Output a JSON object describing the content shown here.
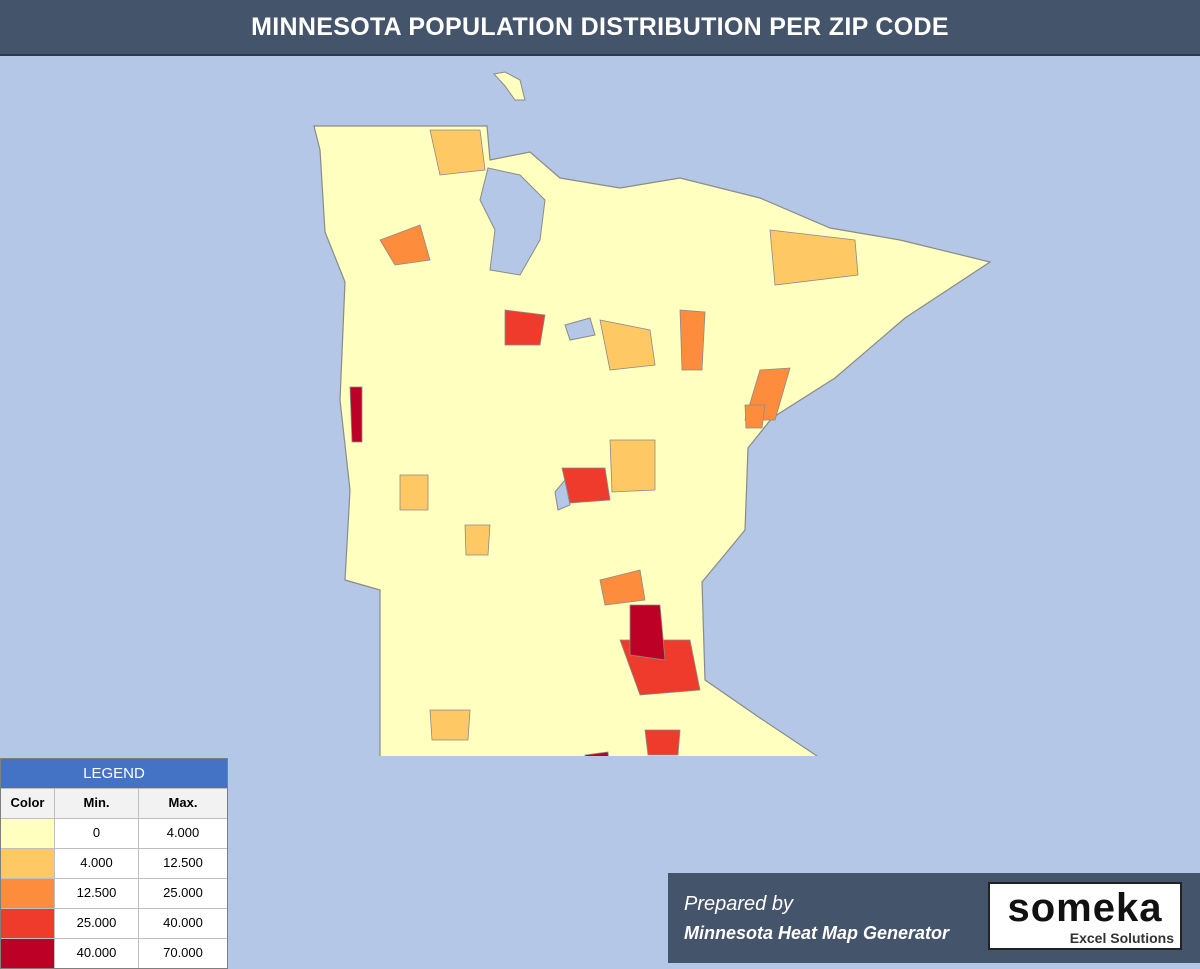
{
  "title": "MINNESOTA POPULATION DISTRIBUTION PER ZIP CODE",
  "legend": {
    "title": "LEGEND",
    "columns": [
      "Color",
      "Min.",
      "Max."
    ],
    "rows": [
      {
        "min": "0",
        "max": "4.000",
        "color": "#ffffbf"
      },
      {
        "min": "4.000",
        "max": "12.500",
        "color": "#fec965"
      },
      {
        "min": "12.500",
        "max": "25.000",
        "color": "#fd8d3c"
      },
      {
        "min": "25.000",
        "max": "40.000",
        "color": "#ef3b2c"
      },
      {
        "min": "40.000",
        "max": "70.000",
        "color": "#bd0026"
      }
    ]
  },
  "footer": {
    "prepared_by": "Prepared by",
    "product": "Minnesota Heat Map Generator"
  },
  "logo": {
    "name": "someka",
    "tagline": "Excel Solutions"
  }
}
